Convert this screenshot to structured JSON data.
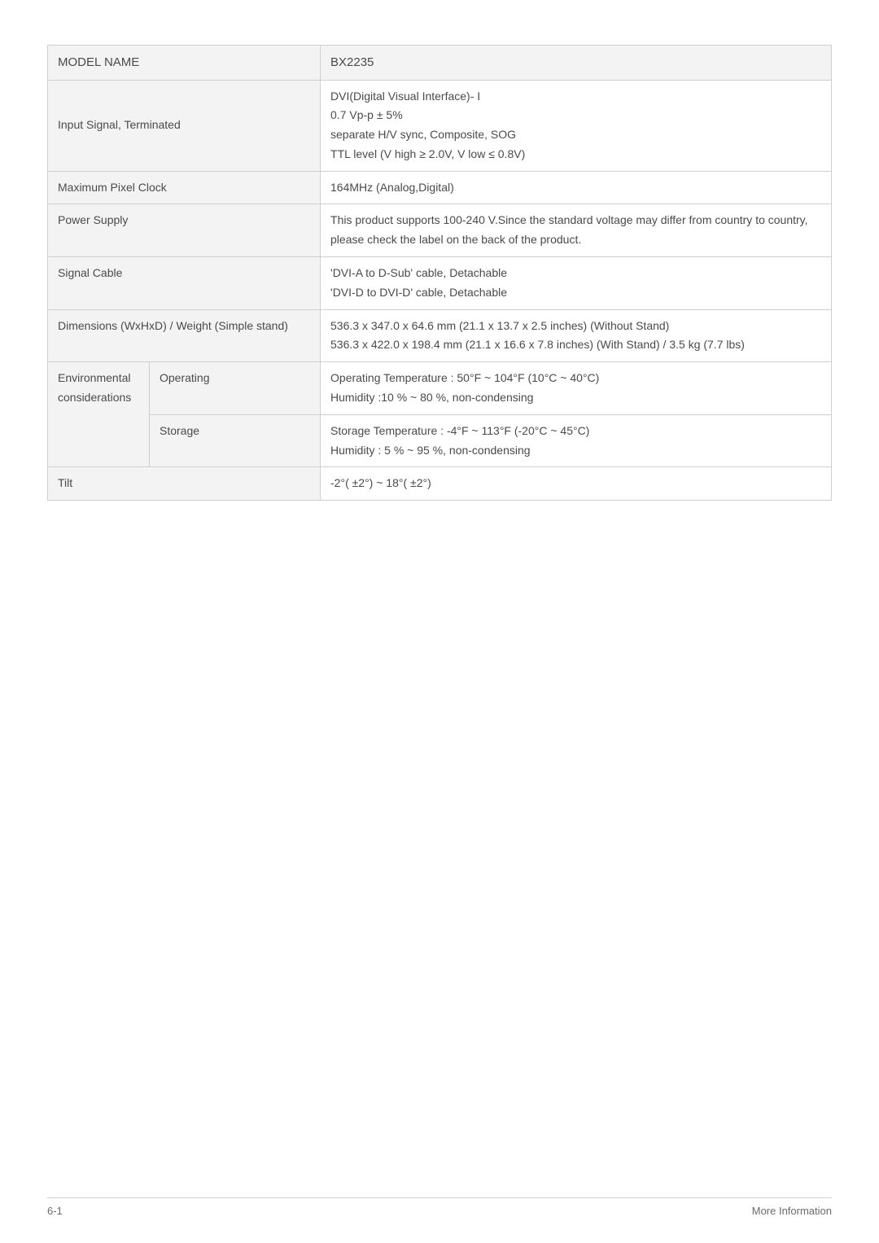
{
  "table": {
    "header_left": "MODEL NAME",
    "header_right": "BX2235",
    "rows": {
      "input_signal": {
        "label": "Input Signal, Terminated",
        "lines": [
          "DVI(Digital Visual Interface)- I",
          "0.7 Vp-p ± 5%",
          "separate H/V sync, Composite, SOG",
          "TTL level (V high ≥ 2.0V, V low ≤ 0.8V)"
        ]
      },
      "max_pixel_clock": {
        "label": "Maximum Pixel Clock",
        "value": "164MHz (Analog,Digital)"
      },
      "power_supply": {
        "label": "Power Supply",
        "value": "This product supports 100-240 V.Since the standard voltage may differ from country to country, please check the label on the back of the product."
      },
      "signal_cable": {
        "label": "Signal Cable",
        "lines": [
          "'DVI-A to D-Sub' cable, Detachable",
          "'DVI-D to DVI-D' cable, Detachable"
        ]
      },
      "dimensions": {
        "label": "Dimensions (WxHxD) / Weight (Simple stand)",
        "lines": [
          "536.3 x 347.0 x 64.6 mm (21.1 x 13.7 x 2.5 inches) (Without Stand)",
          "536.3 x 422.0 x 198.4 mm (21.1 x 16.6 x 7.8 inches) (With Stand) / 3.5 kg (7.7 lbs)"
        ]
      },
      "env": {
        "group_label": "Environmental considerations",
        "operating_label": "Operating",
        "operating_lines": [
          "Operating Temperature : 50°F ~ 104°F (10°C ~ 40°C)",
          "Humidity :10 % ~ 80 %, non-condensing"
        ],
        "storage_label": "Storage",
        "storage_lines": [
          "Storage Temperature : -4°F ~ 113°F (-20°C ~ 45°C)",
          "Humidity : 5 % ~ 95 %, non-condensing"
        ]
      },
      "tilt": {
        "label": "Tilt",
        "value": "-2°( ±2°) ~ 18°( ±2°)"
      }
    }
  },
  "footer": {
    "left": "6-1",
    "right": "More Information"
  },
  "style": {
    "header_color": "#2f66c4",
    "border_color": "#cfcfcf",
    "row_header_bg": "#f3f3f3",
    "text_color": "#4a4a4a",
    "footer_color": "#6a6a6a",
    "background": "#ffffff",
    "font_size_body": 14,
    "font_size_header": 15,
    "font_size_footer": 13
  }
}
